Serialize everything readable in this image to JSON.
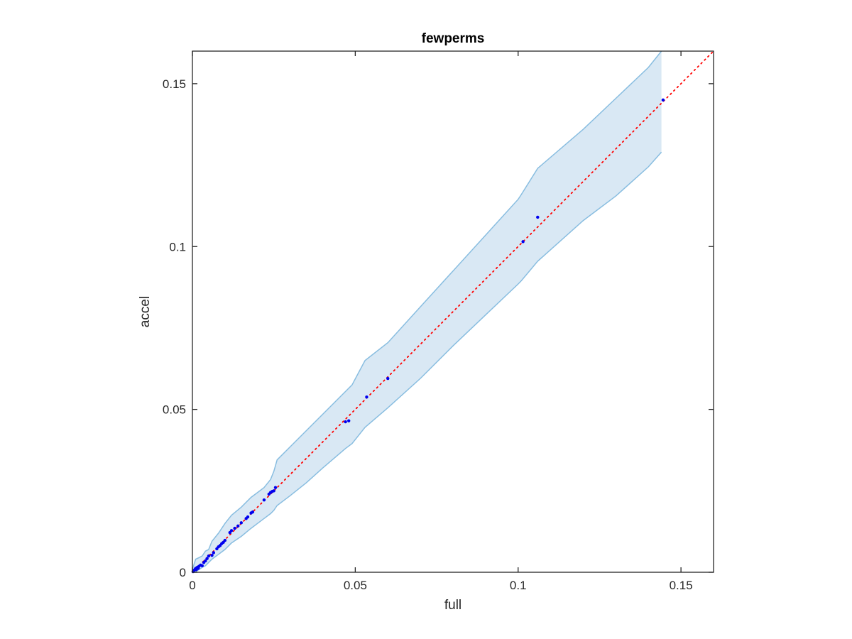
{
  "chart_data": {
    "type": "scatter",
    "title": "fewperms",
    "xlabel": "full",
    "ylabel": "accel",
    "xlim": [
      0,
      0.16
    ],
    "ylim": [
      0,
      0.16
    ],
    "xticks": [
      0,
      0.05,
      0.1,
      0.15
    ],
    "yticks": [
      0,
      0.05,
      0.1,
      0.15
    ],
    "xtick_labels": [
      "0",
      "0.05",
      "0.1",
      "0.15"
    ],
    "ytick_labels": [
      "0",
      "0.05",
      "0.1",
      "0.15"
    ],
    "grid": false,
    "colors": {
      "points": "#0000ee",
      "reference_line": "#ff0000",
      "band_fill": "#d9e8f4",
      "band_edge": "#88bde0",
      "axes": "#262626"
    },
    "reference_line": {
      "style": "dotted",
      "from": [
        0,
        0
      ],
      "to": [
        0.16,
        0.16
      ]
    },
    "confidence_band": {
      "x": [
        0,
        0.0005,
        0.001,
        0.002,
        0.003,
        0.004,
        0.005,
        0.006,
        0.008,
        0.01,
        0.012,
        0.015,
        0.018,
        0.02,
        0.022,
        0.024,
        0.025,
        0.026,
        0.03,
        0.035,
        0.04,
        0.047,
        0.049,
        0.053,
        0.06,
        0.07,
        0.08,
        0.09,
        0.1,
        0.101,
        0.106,
        0.12,
        0.13,
        0.14,
        0.144
      ],
      "upper": [
        0.0008,
        0.0025,
        0.004,
        0.0045,
        0.005,
        0.0065,
        0.007,
        0.0095,
        0.012,
        0.015,
        0.0175,
        0.02,
        0.023,
        0.0245,
        0.026,
        0.0285,
        0.031,
        0.0345,
        0.0385,
        0.0435,
        0.0485,
        0.0555,
        0.0575,
        0.065,
        0.0705,
        0.0815,
        0.0925,
        0.1035,
        0.1145,
        0.116,
        0.124,
        0.136,
        0.1455,
        0.155,
        0.16
      ],
      "lower": [
        0,
        0,
        0.0002,
        0.0008,
        0.0015,
        0.002,
        0.003,
        0.004,
        0.0055,
        0.007,
        0.009,
        0.011,
        0.0135,
        0.015,
        0.0165,
        0.018,
        0.019,
        0.0205,
        0.0235,
        0.0275,
        0.032,
        0.038,
        0.0395,
        0.0445,
        0.0505,
        0.0595,
        0.0695,
        0.079,
        0.0885,
        0.0895,
        0.0955,
        0.108,
        0.1155,
        0.1245,
        0.129
      ]
    },
    "series": [
      {
        "x": [
          0.0002,
          0.0005,
          0.0008,
          0.001,
          0.0012,
          0.0015,
          0.0018,
          0.002,
          0.0025,
          0.003,
          0.0035,
          0.004,
          0.0045,
          0.005,
          0.006,
          0.0065,
          0.0075,
          0.008,
          0.0085,
          0.009,
          0.0095,
          0.01,
          0.0115,
          0.012,
          0.013,
          0.014,
          0.015,
          0.0165,
          0.017,
          0.018,
          0.0185,
          0.022,
          0.0235,
          0.024,
          0.0245,
          0.025,
          0.0255,
          0.047,
          0.048,
          0.0535,
          0.06,
          0.1015,
          0.106,
          0.1445
        ],
        "y": [
          0.0002,
          0.0006,
          0.0009,
          0.0012,
          0.0008,
          0.0015,
          0.0012,
          0.0018,
          0.0022,
          0.002,
          0.003,
          0.0035,
          0.0042,
          0.005,
          0.0052,
          0.006,
          0.0072,
          0.0078,
          0.0082,
          0.0088,
          0.0092,
          0.0098,
          0.0122,
          0.0128,
          0.0135,
          0.0142,
          0.0152,
          0.0165,
          0.017,
          0.0182,
          0.0185,
          0.0222,
          0.024,
          0.0245,
          0.0248,
          0.025,
          0.026,
          0.0462,
          0.0465,
          0.0538,
          0.0595,
          0.1015,
          0.109,
          0.145
        ]
      }
    ]
  }
}
